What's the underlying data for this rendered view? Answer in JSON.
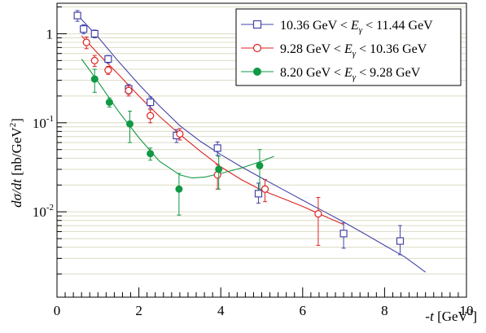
{
  "chart_data": {
    "type": "scatter",
    "xlabel_prefix": "-t",
    "xlabel_unit": "[GeV",
    "xlabel_sup": "2",
    "xlabel_close": "]",
    "ylabel_main": "dσ/dt",
    "ylabel_unit": "[nb/GeV",
    "ylabel_sup": "2",
    "ylabel_close": "]",
    "xlim": [
      0,
      10
    ],
    "ylim": [
      0.0011,
      2.2
    ],
    "yscale": "log",
    "grid": "horizontal minor log grid",
    "legend_position": "top-right",
    "x_ticks": [
      0,
      2,
      4,
      6,
      8,
      10
    ],
    "y_ticks": [
      {
        "value": 1,
        "base": "1",
        "exp": ""
      },
      {
        "value": 0.1,
        "base": "10",
        "exp": "-1"
      },
      {
        "value": 0.01,
        "base": "10",
        "exp": "-2"
      }
    ],
    "series": [
      {
        "name_pre": "10.36 GeV < ",
        "name_var": "E",
        "name_sub": "γ",
        "name_post": " < 11.44 GeV",
        "color": "#4444aa",
        "marker": "open-square",
        "points": [
          {
            "x": 0.5,
            "y": 1.6,
            "lo": 1.38,
            "hi": 1.82
          },
          {
            "x": 0.65,
            "y": 1.13,
            "lo": 1.0,
            "hi": 1.26
          },
          {
            "x": 0.92,
            "y": 1.0,
            "lo": 0.9,
            "hi": 1.1
          },
          {
            "x": 1.25,
            "y": 0.52,
            "lo": 0.47,
            "hi": 0.57
          },
          {
            "x": 1.75,
            "y": 0.24,
            "lo": 0.21,
            "hi": 0.27
          },
          {
            "x": 2.28,
            "y": 0.17,
            "lo": 0.145,
            "hi": 0.195
          },
          {
            "x": 2.92,
            "y": 0.072,
            "lo": 0.06,
            "hi": 0.084
          },
          {
            "x": 3.92,
            "y": 0.052,
            "lo": 0.043,
            "hi": 0.061
          },
          {
            "x": 4.92,
            "y": 0.016,
            "lo": 0.0125,
            "hi": 0.021
          },
          {
            "x": 7.0,
            "y": 0.0057,
            "lo": 0.0039,
            "hi": 0.0075
          },
          {
            "x": 8.38,
            "y": 0.0047,
            "lo": 0.0033,
            "hi": 0.007
          }
        ],
        "curve": [
          [
            0.5,
            1.62
          ],
          [
            1,
            0.92
          ],
          [
            1.5,
            0.49
          ],
          [
            2,
            0.27
          ],
          [
            2.5,
            0.155
          ],
          [
            3,
            0.093
          ],
          [
            3.5,
            0.062
          ],
          [
            4,
            0.044
          ],
          [
            4.5,
            0.032
          ],
          [
            5,
            0.024
          ],
          [
            5.5,
            0.018
          ],
          [
            6,
            0.0135
          ],
          [
            6.5,
            0.0102
          ],
          [
            7,
            0.0077
          ],
          [
            7.5,
            0.0057
          ],
          [
            8,
            0.0042
          ],
          [
            8.5,
            0.0031
          ],
          [
            9,
            0.0021
          ]
        ]
      },
      {
        "name_pre": "9.28 GeV < ",
        "name_var": "E",
        "name_sub": "γ",
        "name_post": " < 10.36 GeV",
        "color": "#dd2222",
        "marker": "open-circle",
        "points": [
          {
            "x": 0.72,
            "y": 0.8,
            "lo": 0.68,
            "hi": 0.92
          },
          {
            "x": 0.92,
            "y": 0.5,
            "lo": 0.43,
            "hi": 0.57
          },
          {
            "x": 1.25,
            "y": 0.39,
            "lo": 0.35,
            "hi": 0.43
          },
          {
            "x": 1.75,
            "y": 0.23,
            "lo": 0.2,
            "hi": 0.26
          },
          {
            "x": 2.28,
            "y": 0.12,
            "lo": 0.1,
            "hi": 0.14
          },
          {
            "x": 3.0,
            "y": 0.075,
            "lo": 0.064,
            "hi": 0.086
          },
          {
            "x": 3.92,
            "y": 0.026,
            "lo": 0.018,
            "hi": 0.034
          },
          {
            "x": 5.08,
            "y": 0.018,
            "lo": 0.013,
            "hi": 0.023
          },
          {
            "x": 6.38,
            "y": 0.0095,
            "lo": 0.0042,
            "hi": 0.0145
          }
        ],
        "curve": [
          [
            0.6,
            0.95
          ],
          [
            1,
            0.6
          ],
          [
            1.5,
            0.35
          ],
          [
            2,
            0.2
          ],
          [
            2.5,
            0.118
          ],
          [
            3,
            0.074
          ],
          [
            3.5,
            0.048
          ],
          [
            4,
            0.032
          ],
          [
            4.5,
            0.023
          ],
          [
            5,
            0.0175
          ],
          [
            5.5,
            0.0142
          ],
          [
            6,
            0.0115
          ],
          [
            6.4,
            0.0095
          ],
          [
            7,
            0.0072
          ]
        ]
      },
      {
        "name_pre": "8.20 GeV < ",
        "name_var": "E",
        "name_sub": "γ",
        "name_post": " < 9.28 GeV",
        "color": "#119944",
        "marker": "filled-circle",
        "points": [
          {
            "x": 0.92,
            "y": 0.31,
            "lo": 0.22,
            "hi": 0.4
          },
          {
            "x": 1.28,
            "y": 0.17,
            "lo": 0.15,
            "hi": 0.19
          },
          {
            "x": 1.78,
            "y": 0.097,
            "lo": 0.06,
            "hi": 0.135
          },
          {
            "x": 2.28,
            "y": 0.045,
            "lo": 0.038,
            "hi": 0.052
          },
          {
            "x": 2.98,
            "y": 0.018,
            "lo": 0.0092,
            "hi": 0.027
          },
          {
            "x": 3.95,
            "y": 0.03,
            "lo": 0.018,
            "hi": 0.042
          },
          {
            "x": 4.95,
            "y": 0.033,
            "lo": 0.018,
            "hi": 0.05
          }
        ],
        "curve": [
          [
            0.6,
            0.52
          ],
          [
            1,
            0.29
          ],
          [
            1.5,
            0.135
          ],
          [
            2,
            0.068
          ],
          [
            2.5,
            0.037
          ],
          [
            3,
            0.026
          ],
          [
            3.3,
            0.024
          ],
          [
            3.6,
            0.0245
          ],
          [
            4,
            0.027
          ],
          [
            4.5,
            0.031
          ],
          [
            5,
            0.037
          ],
          [
            5.3,
            0.042
          ]
        ]
      }
    ]
  }
}
